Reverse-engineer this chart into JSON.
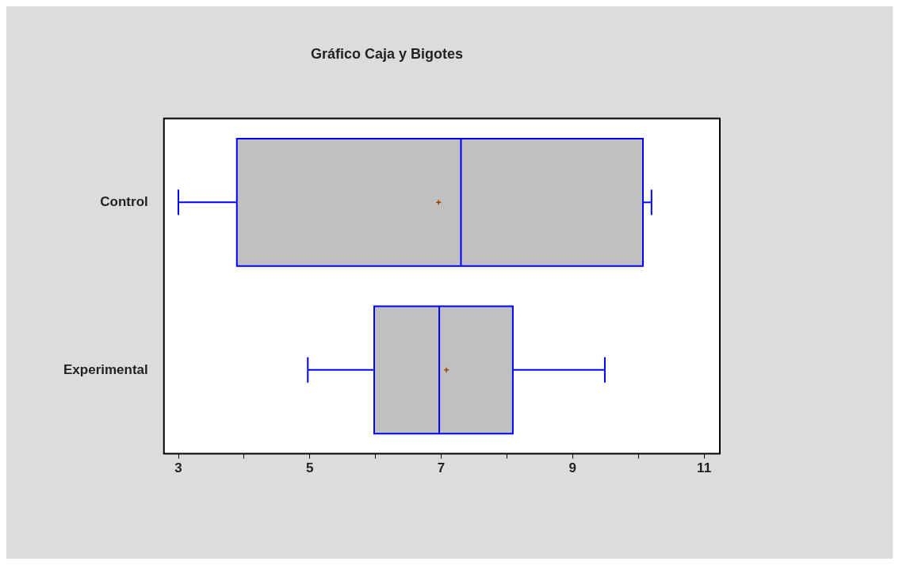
{
  "chart_data": {
    "type": "box",
    "title": "Gráfico Caja y Bigotes",
    "orientation": "horizontal",
    "categories": [
      "Control",
      "Experimental"
    ],
    "color": "#c0c0c0",
    "boxes": [
      {
        "low": 3.0,
        "q1": 3.89,
        "median": 7.3,
        "q3": 10.07,
        "high": 10.2,
        "mean": 6.96
      },
      {
        "low": 4.97,
        "q1": 5.98,
        "median": 6.97,
        "q3": 8.09,
        "high": 9.49,
        "mean": 7.08
      }
    ],
    "xlim": [
      2.78,
      11.24
    ],
    "xticks": [
      3,
      {
        "value": 4,
        "label": null
      },
      5,
      {
        "value": 6,
        "label": null
      },
      7,
      {
        "value": 8,
        "label": null
      },
      9,
      {
        "value": 10,
        "label": null
      },
      11
    ],
    "grid": false,
    "legend": false
  }
}
